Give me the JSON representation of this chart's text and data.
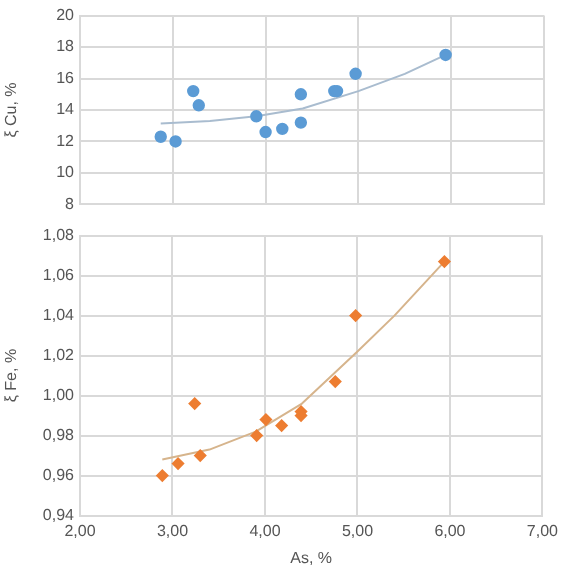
{
  "chart_data": [
    {
      "type": "scatter",
      "ylabel": "ξ Cu, %",
      "xlim": [
        2,
        7
      ],
      "xticks": [
        2,
        3,
        4,
        5,
        6,
        7
      ],
      "ylim": [
        8,
        20
      ],
      "yticks": [
        8,
        10,
        12,
        14,
        16,
        18,
        20
      ],
      "tick_labels": "y",
      "grid": true,
      "series": [
        {
          "color": "#5b9bd5",
          "marker": "circle",
          "x": [
            2.87,
            3.03,
            3.22,
            3.28,
            3.9,
            4.0,
            4.18,
            4.38,
            4.38,
            4.74,
            4.77,
            4.97,
            5.94
          ],
          "values": [
            12.3,
            12.0,
            15.2,
            14.3,
            13.6,
            12.6,
            12.8,
            13.2,
            15.0,
            15.2,
            15.2,
            16.3,
            17.5
          ]
        },
        {
          "type": "line",
          "color": "#a9bccf",
          "marker": "none",
          "x": [
            2.87,
            3.4,
            3.9,
            4.4,
            5.0,
            5.5,
            5.94
          ],
          "values": [
            13.14,
            13.3,
            13.6,
            14.1,
            15.2,
            16.3,
            17.5
          ]
        }
      ]
    },
    {
      "type": "scatter",
      "ylabel": "ξ Fe, %",
      "xlabel": "As, %",
      "xlim": [
        2,
        7
      ],
      "xticks": [
        {
          "value": 2,
          "label": "2,00"
        },
        {
          "value": 3,
          "label": "3,00"
        },
        {
          "value": 4,
          "label": "4,00"
        },
        {
          "value": 5,
          "label": "5,00"
        },
        {
          "value": 6,
          "label": "6,00"
        },
        {
          "value": 7,
          "label": "7,00"
        }
      ],
      "ylim": [
        0.94,
        1.08
      ],
      "yticks": [
        {
          "value": 0.94,
          "label": "0,94"
        },
        {
          "value": 0.96,
          "label": "0,96"
        },
        {
          "value": 0.98,
          "label": "0,98"
        },
        {
          "value": 1.0,
          "label": "1,00"
        },
        {
          "value": 1.02,
          "label": "1,02"
        },
        {
          "value": 1.04,
          "label": "1,04"
        },
        {
          "value": 1.06,
          "label": "1,06"
        },
        {
          "value": 1.08,
          "label": "1,08"
        }
      ],
      "grid": true,
      "series": [
        {
          "color": "#ed7d31",
          "marker": "diamond",
          "x": [
            2.89,
            3.06,
            3.24,
            3.3,
            3.91,
            4.01,
            4.18,
            4.39,
            4.39,
            4.76,
            4.98,
            5.94
          ],
          "values": [
            0.96,
            0.966,
            0.996,
            0.97,
            0.98,
            0.988,
            0.985,
            0.992,
            0.99,
            1.007,
            1.04,
            1.067
          ]
        },
        {
          "type": "line",
          "color": "#d6b48c",
          "marker": "none",
          "x": [
            2.89,
            3.4,
            3.9,
            4.4,
            5.0,
            5.4,
            5.94
          ],
          "values": [
            0.968,
            0.973,
            0.982,
            0.996,
            1.022,
            1.04,
            1.067
          ]
        }
      ]
    }
  ]
}
